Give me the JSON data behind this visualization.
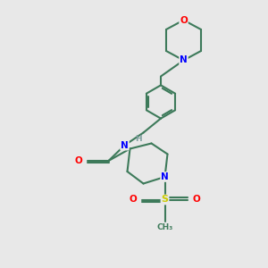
{
  "background_color": "#e8e8e8",
  "bond_color": "#3d7a5a",
  "bond_width": 1.5,
  "atom_colors": {
    "O": "#ff0000",
    "N": "#0000ff",
    "S": "#cccc00",
    "C": "#3d7a5a",
    "H": "#80a0a0"
  },
  "figsize": [
    3.0,
    3.0
  ],
  "dpi": 100
}
